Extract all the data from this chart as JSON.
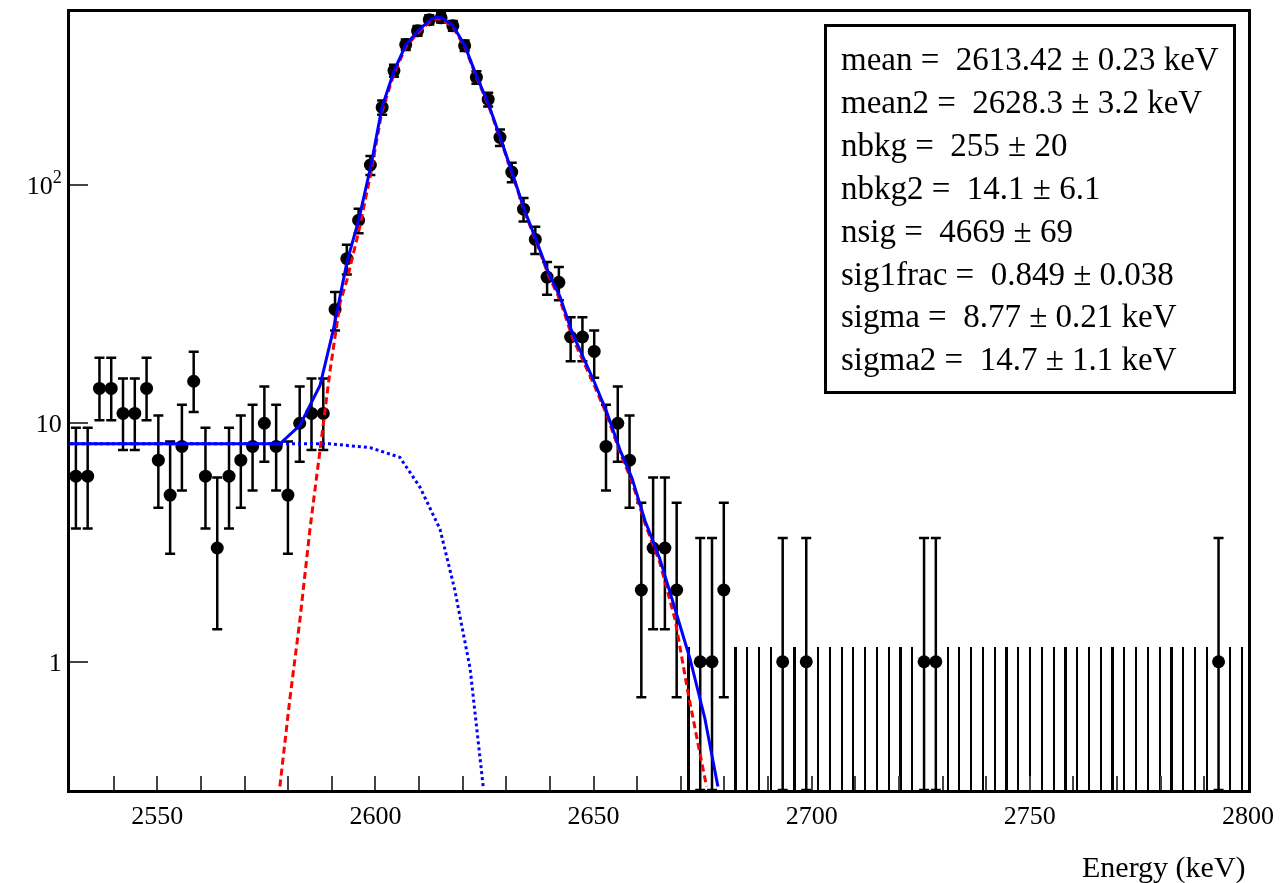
{
  "chart_data": {
    "type": "scatter",
    "xlabel": "Energy (keV)",
    "log": "y",
    "marker": "circle",
    "xlim": [
      2530,
      2800
    ],
    "xticks": [
      {
        "value": 2540,
        "label": null
      },
      2550,
      {
        "value": 2560,
        "label": null
      },
      {
        "value": 2570,
        "label": null
      },
      {
        "value": 2580,
        "label": null
      },
      {
        "value": 2590,
        "label": null
      },
      2600,
      {
        "value": 2610,
        "label": null
      },
      {
        "value": 2620,
        "label": null
      },
      {
        "value": 2630,
        "label": null
      },
      {
        "value": 2640,
        "label": null
      },
      2650,
      {
        "value": 2660,
        "label": null
      },
      {
        "value": 2670,
        "label": null
      },
      {
        "value": 2680,
        "label": null
      },
      {
        "value": 2690,
        "label": null
      },
      2700,
      {
        "value": 2710,
        "label": null
      },
      {
        "value": 2720,
        "label": null
      },
      {
        "value": 2730,
        "label": null
      },
      {
        "value": 2740,
        "label": null
      },
      2750,
      {
        "value": 2760,
        "label": null
      },
      {
        "value": 2770,
        "label": null
      },
      {
        "value": 2780,
        "label": null
      },
      {
        "value": 2790,
        "label": null
      },
      2800
    ],
    "ylim": [
      0.29,
      530
    ],
    "yticks": [
      1,
      10,
      {
        "value": 100,
        "label": "10$^{2}$"
      }
    ],
    "annotations": [
      "mean =  2613.42 ± 0.23 keV",
      "mean2 =  2628.3 ± 3.2 keV",
      "nbkg =  255 ± 20",
      "nbkg2 =  14.1 ± 6.1",
      "nsig =  4669 ± 69",
      "sig1frac =  0.849 ± 0.038",
      "sigma =  8.77 ± 0.21 keV",
      "sigma2 =  14.7 ± 1.1 keV"
    ],
    "series": [
      {
        "type": "bar",
        "color": "#000000",
        "x": [
          2671.75,
          2682.55,
          2685.25,
          2687.95,
          2690.65,
          2696.05,
          2701.45,
          2704.15,
          2706.85,
          2709.55,
          2712.25,
          2714.95,
          2717.65,
          2720.35,
          2723.05,
          2731.15,
          2733.85,
          2736.55,
          2739.25,
          2741.95,
          2744.65,
          2747.35,
          2750.05,
          2752.75,
          2755.45,
          2758.15,
          2760.85,
          2763.55,
          2766.25,
          2768.95,
          2771.65,
          2774.35,
          2777.05,
          2779.75,
          2782.45,
          2785.15,
          2787.85,
          2790.55,
          2795.95,
          2798.65
        ],
        "values": [
          1.15,
          1.15,
          1.15,
          1.15,
          1.15,
          1.15,
          1.15,
          1.15,
          1.15,
          1.15,
          1.15,
          1.15,
          1.15,
          1.15,
          1.15,
          1.15,
          1.15,
          1.15,
          1.15,
          1.15,
          1.15,
          1.15,
          1.15,
          1.15,
          1.15,
          1.15,
          1.15,
          1.15,
          1.15,
          1.15,
          1.15,
          1.15,
          1.15,
          1.15,
          1.15,
          1.15,
          1.15,
          1.15,
          1.15,
          1.15
        ]
      },
      {
        "color": "#000000",
        "x": [
          2531.35,
          2534.05,
          2536.75,
          2539.45,
          2542.15,
          2544.85,
          2547.55,
          2550.25,
          2552.95,
          2555.65,
          2558.35,
          2561.05,
          2563.75,
          2566.45,
          2569.15,
          2571.85,
          2574.55,
          2577.25,
          2579.95,
          2582.65,
          2585.35,
          2588.05,
          2590.75,
          2593.45,
          2596.15,
          2598.85,
          2601.55,
          2604.25,
          2606.95,
          2609.65,
          2612.35,
          2615.05,
          2617.75,
          2620.45,
          2623.15,
          2625.85,
          2628.55,
          2631.25,
          2633.95,
          2636.65,
          2639.35,
          2642.05,
          2644.75,
          2647.45,
          2650.15,
          2652.85,
          2655.55,
          2658.25,
          2660.95,
          2663.65,
          2666.35,
          2669.05,
          2674.45,
          2677.15,
          2679.85,
          2693.35,
          2698.75,
          2725.75,
          2728.45,
          2793.25
        ],
        "values": [
          6,
          6,
          14,
          14,
          11,
          11,
          14,
          7,
          5,
          8,
          15,
          6,
          3,
          6,
          7,
          8,
          10,
          8,
          5,
          10,
          11,
          11,
          30,
          49,
          71,
          121,
          211,
          301,
          387,
          442,
          492,
          501,
          464,
          383,
          282,
          228,
          158,
          113,
          79,
          59,
          41,
          39,
          23,
          23,
          20,
          8,
          10,
          7,
          2,
          3,
          3,
          2,
          1,
          1,
          2,
          1,
          1,
          1,
          1,
          1
        ],
        "errors": [
          [
            3.62,
            9.58
          ],
          [
            3.62,
            9.58
          ],
          [
            10.3,
            18.83
          ],
          [
            10.3,
            18.83
          ],
          [
            7.73,
            15.42
          ],
          [
            7.73,
            15.42
          ],
          [
            10.3,
            18.83
          ],
          [
            4.42,
            10.77
          ],
          [
            2.84,
            8.38
          ],
          [
            5.23,
            11.95
          ],
          [
            11.16,
            19.96
          ],
          [
            3.62,
            9.58
          ],
          [
            1.37,
            5.92
          ],
          [
            3.62,
            9.58
          ],
          [
            4.42,
            10.77
          ],
          [
            5.23,
            11.95
          ],
          [
            6.89,
            14.27
          ],
          [
            5.23,
            11.95
          ],
          [
            2.84,
            8.38
          ],
          [
            6.89,
            14.27
          ],
          [
            7.73,
            15.42
          ],
          [
            7.73,
            15.42
          ],
          5.5,
          7,
          8.4,
          11,
          14.5,
          17.3,
          19.7,
          21,
          22.2,
          22.4,
          21.5,
          19.6,
          16.8,
          15.1,
          12.6,
          10.6,
          8.9,
          7.7,
          6.4,
          6.2,
          4.8,
          4.8,
          4.5,
          [
            5.23,
            11.95
          ],
          [
            6.89,
            14.27
          ],
          [
            4.42,
            10.77
          ],
          [
            0.71,
            4.64
          ],
          [
            1.37,
            5.92
          ],
          [
            1.37,
            5.92
          ],
          [
            0.71,
            4.64
          ],
          [
            0.29,
            3.3
          ],
          [
            0.29,
            3.3
          ],
          [
            0.71,
            4.64
          ],
          [
            0.29,
            3.3
          ],
          [
            0.29,
            3.3
          ],
          [
            0.29,
            3.3
          ],
          [
            0.29,
            3.3
          ],
          [
            0.29,
            3.3
          ]
        ]
      },
      {
        "type": "line",
        "color": "#0000ff",
        "line_style": "dotted",
        "marker": "none",
        "x": [
          2530,
          2589.6,
          2598.8,
          2605.6,
          2610.2,
          2614.8,
          2618.2,
          2621.7,
          2624.7
        ],
        "values": [
          8.2,
          8.2,
          7.9,
          7.2,
          5.4,
          3.6,
          2.0,
          0.94,
          0.3
        ]
      },
      {
        "type": "line",
        "color": "#ff0000",
        "line_style": "dashed",
        "marker": "none",
        "x": [
          2578.1,
          2580.4,
          2582.7,
          2585.0,
          2587.3,
          2589.6,
          2591.9,
          2593.5,
          2596.2,
          2599.0,
          2601.5,
          2604.3,
          2607.0,
          2609.8,
          2612.5,
          2613.9,
          2615.3,
          2617.8,
          2620.5,
          2623.3,
          2625.8,
          2628.6,
          2631.3,
          2634.1,
          2636.8,
          2639.6,
          2642.3,
          2645.1,
          2650.1,
          2652.9,
          2656.1,
          2658.8,
          2661.8,
          2665.2,
          2668.7,
          2671.6,
          2674.3,
          2675.9
        ],
        "values": [
          0.3,
          0.7,
          1.5,
          3.6,
          7.7,
          16.6,
          32,
          40,
          64,
          113,
          203,
          293,
          379,
          434,
          484,
          497,
          493,
          458,
          378,
          278,
          218,
          156,
          112,
          78,
          58,
          42,
          33,
          23,
          14.5,
          11,
          7.5,
          5.7,
          3.8,
          2.6,
          1.5,
          0.75,
          0.42,
          0.3
        ]
      },
      {
        "type": "line",
        "color": "#0000ff",
        "line_style": "solid",
        "marker": "none",
        "x": [
          2530,
          2578.1,
          2582.7,
          2587.3,
          2590.3,
          2593.5,
          2596.2,
          2599.0,
          2601.5,
          2604.3,
          2607.0,
          2609.8,
          2612.5,
          2613.9,
          2615.3,
          2617.8,
          2620.5,
          2623.3,
          2625.8,
          2628.6,
          2631.3,
          2634.1,
          2636.8,
          2639.6,
          2642.3,
          2645.1,
          2650.1,
          2652.9,
          2656.1,
          2658.8,
          2661.8,
          2665.2,
          2668.7,
          2672.1,
          2675.5,
          2678.5
        ],
        "values": [
          8.2,
          8.2,
          9.8,
          14.4,
          24.4,
          47.6,
          71.6,
          121,
          211,
          301,
          387,
          442,
          492,
          505,
          501,
          464,
          383,
          282,
          221,
          158,
          113,
          79,
          59,
          43,
          34,
          24,
          15,
          11.3,
          7.7,
          5.9,
          3.9,
          2.7,
          1.66,
          1.03,
          0.58,
          0.3
        ]
      }
    ]
  }
}
